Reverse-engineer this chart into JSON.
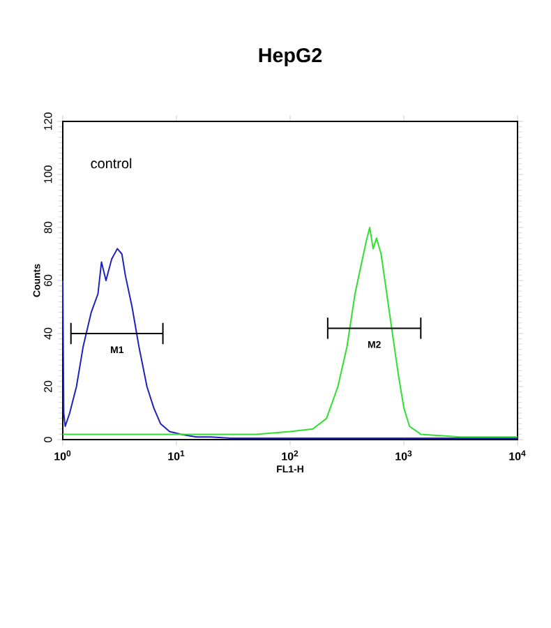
{
  "chart_data": {
    "type": "line",
    "title": "HepG2",
    "xlabel": "FL1-H",
    "ylabel": "Counts",
    "log": "x",
    "xlim": [
      1,
      10000
    ],
    "ylim": [
      0,
      120
    ],
    "xticks": [
      {
        "value": 1,
        "label": "10$^{0}$"
      },
      {
        "value": 10,
        "label": "10$^{1}$"
      },
      {
        "value": 100,
        "label": "10$^{2}$"
      },
      {
        "value": 1000,
        "label": "10$^{3}$"
      },
      {
        "value": 10000,
        "label": "10$^{4}$"
      }
    ],
    "yticks": [
      0,
      20,
      40,
      60,
      80,
      100,
      120
    ],
    "annotations": [
      "control",
      {
        "text": "M1",
        "x": 3,
        "y": 40
      },
      {
        "text": "M2",
        "x": 550,
        "y": 42
      }
    ],
    "series": [
      {
        "color": "#2020c0",
        "x": [
          1.0,
          1.02,
          1.05,
          1.15,
          1.32,
          1.51,
          1.78,
          2.04,
          2.19,
          2.4,
          2.69,
          3.02,
          3.31,
          3.55,
          4.07,
          4.68,
          5.5,
          6.31,
          7.24,
          8.71,
          10.96,
          15,
          20,
          30,
          50,
          100,
          200,
          500,
          1000,
          3000,
          10000
        ],
        "values": [
          60,
          10,
          5,
          10,
          20,
          35,
          48,
          55,
          67,
          60,
          68,
          72,
          70,
          62,
          50,
          35,
          20,
          12,
          6,
          3,
          2,
          1,
          1,
          0.5,
          0.5,
          0.5,
          0.5,
          0.5,
          0.5,
          0.5,
          0.5
        ]
      },
      {
        "color": "#30e030",
        "x": [
          1,
          2,
          5,
          10,
          20,
          50,
          100,
          158,
          209,
          263,
          316,
          372,
          417,
          468,
          501,
          537,
          575,
          631,
          708,
          794,
          891,
          1000,
          1122,
          1413,
          3162,
          10000
        ],
        "values": [
          2,
          2,
          2,
          2,
          2,
          2,
          3,
          4,
          8,
          20,
          35,
          55,
          65,
          75,
          80,
          72,
          76,
          70,
          55,
          40,
          25,
          12,
          5,
          2,
          1,
          1
        ]
      },
      {
        "color": "#000000",
        "x": [
          1.18,
          7.6
        ],
        "values": [
          40,
          40
        ],
        "errors": [
          4,
          4
        ]
      },
      {
        "color": "#000000",
        "x": [
          214,
          1410
        ],
        "values": [
          42,
          42
        ],
        "errors": [
          4,
          4
        ]
      }
    ]
  }
}
